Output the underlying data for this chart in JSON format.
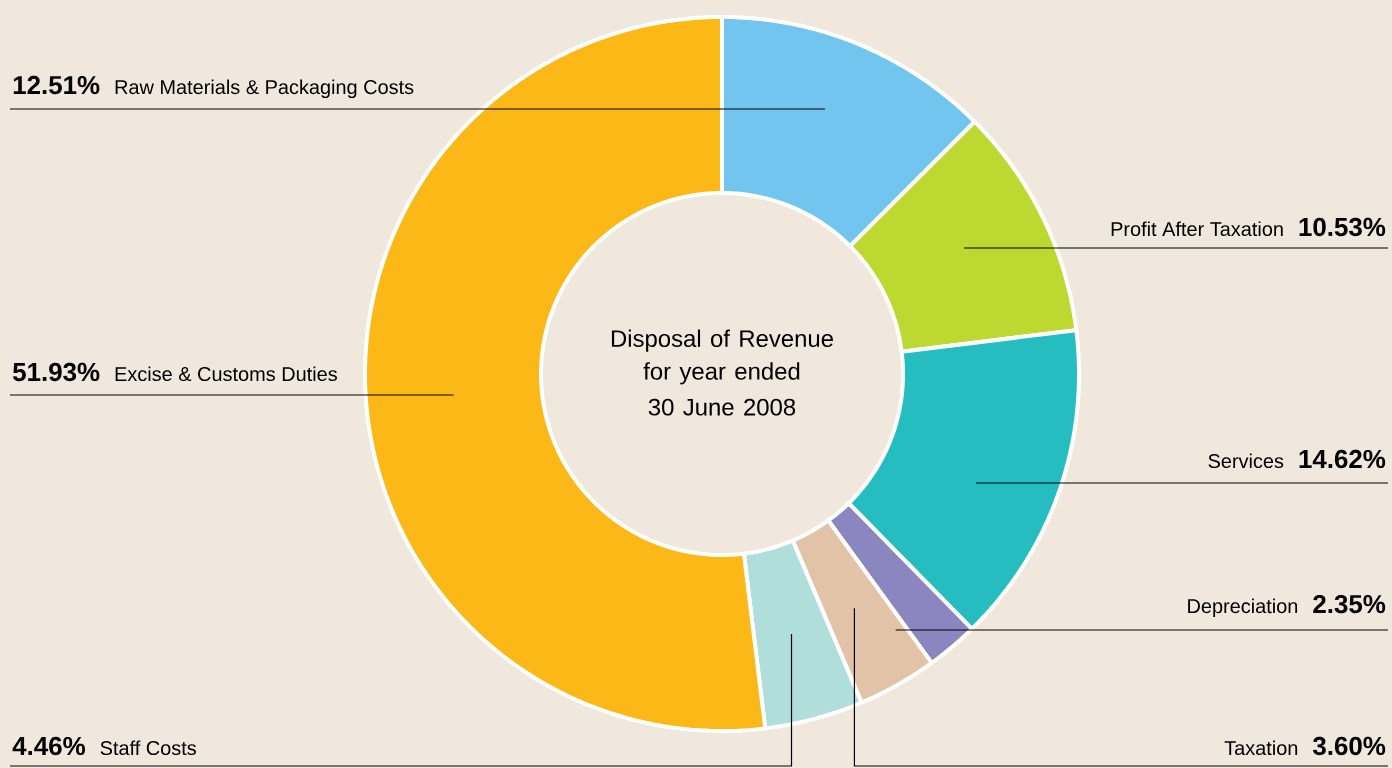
{
  "chart_data": {
    "type": "donut",
    "title": "Disposal of Revenue",
    "subtitle": "for year ended 30 June 2008",
    "categories": [
      "Raw Materials & Packaging Costs",
      "Profit After Taxation",
      "Services",
      "Depreciation",
      "Taxation",
      "Staff Costs",
      "Excise & Customs Duties"
    ],
    "values": [
      12.51,
      10.53,
      14.62,
      2.35,
      3.6,
      4.46,
      51.93
    ],
    "value_labels": [
      "12.51%",
      "10.53%",
      "14.62%",
      "2.35%",
      "3.60%",
      "4.46%",
      "51.93%"
    ],
    "colors": [
      "#72c5ee",
      "#bdd830",
      "#26bdc1",
      "#8b86c0",
      "#e2c3a7",
      "#b0dedb",
      "#fbb817"
    ]
  }
}
